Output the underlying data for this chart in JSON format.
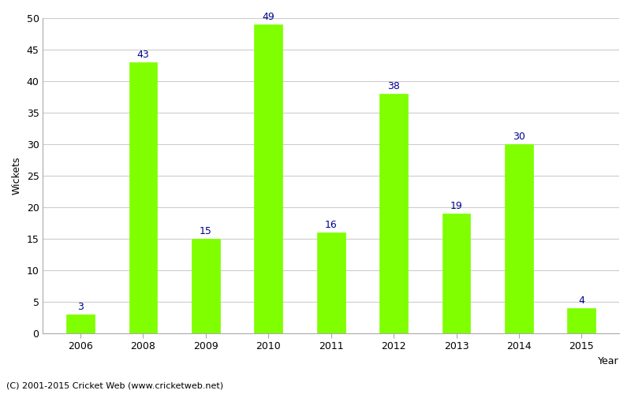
{
  "years": [
    "2006",
    "2008",
    "2009",
    "2010",
    "2011",
    "2012",
    "2013",
    "2014",
    "2015"
  ],
  "values": [
    3,
    43,
    15,
    49,
    16,
    38,
    19,
    30,
    4
  ],
  "bar_color": "#7fff00",
  "bar_edgecolor": "#7fff00",
  "label_color": "#00008b",
  "xlabel": "Year",
  "ylabel": "Wickets",
  "ylim": [
    0,
    50
  ],
  "yticks": [
    0,
    5,
    10,
    15,
    20,
    25,
    30,
    35,
    40,
    45,
    50
  ],
  "footnote": "(C) 2001-2015 Cricket Web (www.cricketweb.net)",
  "background_color": "#ffffff",
  "grid_color": "#cccccc",
  "label_fontsize": 9,
  "axis_fontsize": 9,
  "bar_width": 0.45
}
